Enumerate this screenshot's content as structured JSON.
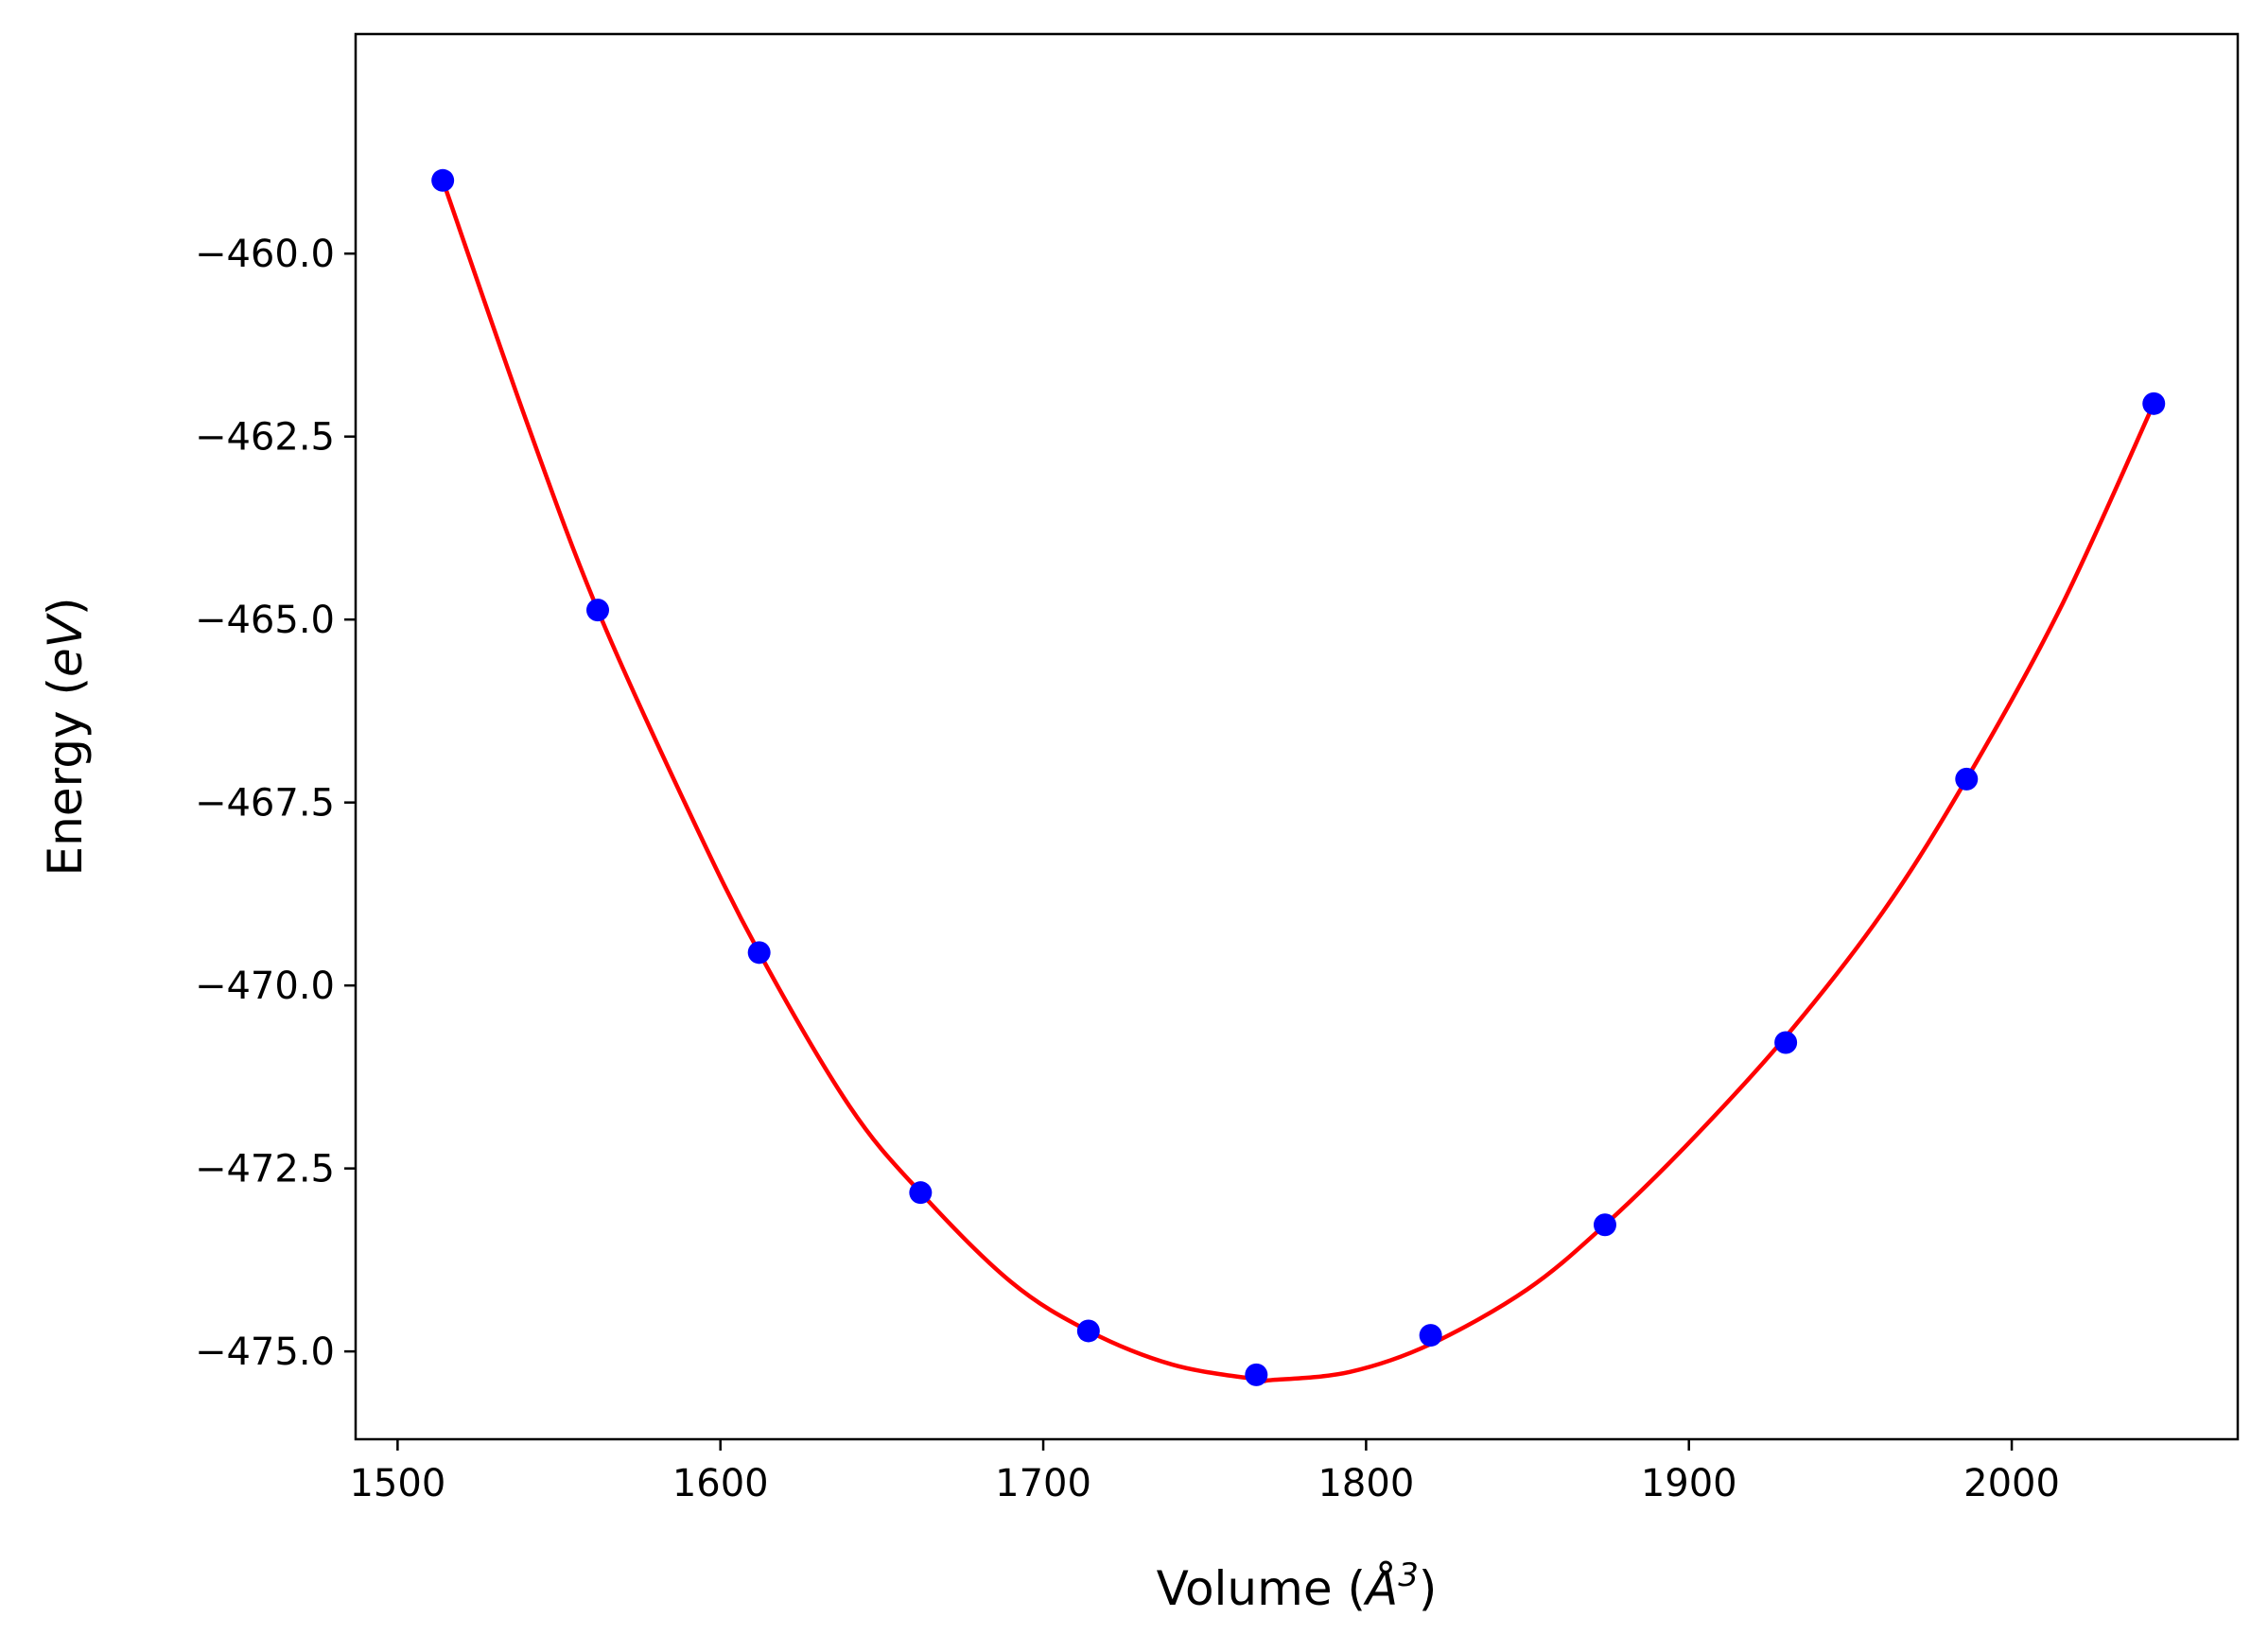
{
  "chart_data": {
    "type": "scatter",
    "xlabel": {
      "prefix": "Volume (",
      "symbol": "Å",
      "exp": "3",
      "suffix": ")"
    },
    "ylabel": {
      "prefix": "Energy (",
      "symbol": "eV",
      "suffix": ")"
    },
    "xlim": [
      1487,
      2070
    ],
    "ylim": [
      -476.2,
      -457.0
    ],
    "xticks": [
      1500,
      1600,
      1700,
      1800,
      1900,
      2000
    ],
    "xtick_labels": [
      "1500",
      "1600",
      "1700",
      "1800",
      "1900",
      "2000"
    ],
    "yticks": [
      -460.0,
      -462.5,
      -465.0,
      -467.5,
      -470.0,
      -472.5,
      -475.0
    ],
    "ytick_labels": [
      "−460.0",
      "−462.5",
      "−465.0",
      "−467.5",
      "−470.0",
      "−472.5",
      "−475.0"
    ],
    "grid": false,
    "series": [
      {
        "role": "data points",
        "marker": "circle",
        "color": "#0000ff",
        "x": [
          1514,
          1562,
          1612,
          1662,
          1714,
          1766,
          1820,
          1874,
          1930,
          1986,
          2044
        ],
        "y": [
          -459.0,
          -464.87,
          -469.55,
          -472.83,
          -474.72,
          -475.32,
          -474.78,
          -473.27,
          -470.78,
          -467.18,
          -462.05
        ]
      },
      {
        "role": "fit curve",
        "marker": "line",
        "color": "#ff0000",
        "x": [
          1514,
          1540,
          1562,
          1590,
          1612,
          1640,
          1662,
          1690,
          1714,
          1740,
          1766,
          1771,
          1795,
          1820,
          1850,
          1874,
          1900,
          1930,
          1960,
          1986,
          2015,
          2044
        ],
        "y": [
          -459.0,
          -462.3,
          -464.87,
          -467.6,
          -469.55,
          -471.65,
          -472.83,
          -474.05,
          -474.72,
          -475.18,
          -475.38,
          -475.39,
          -475.28,
          -474.9,
          -474.15,
          -473.27,
          -472.15,
          -470.7,
          -469.0,
          -467.18,
          -464.85,
          -462.05
        ]
      }
    ]
  }
}
